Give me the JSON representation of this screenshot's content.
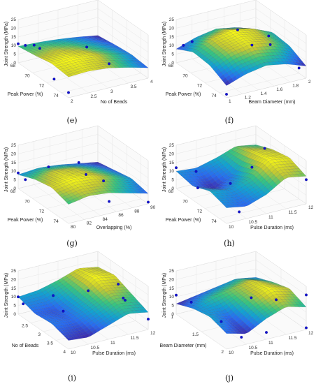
{
  "figure": {
    "panels": [
      {
        "panel_label": "(e)",
        "chart_data": {
          "type": "surface3d",
          "zlabel": "Joint Strength (MPa)",
          "xlabel": "Peak Power (%)",
          "ylabel": "No of Beads",
          "xlim": [
            68,
            75
          ],
          "ylim": [
            2,
            4
          ],
          "zlim": [
            0,
            25
          ],
          "xticks": [
            "68",
            "70",
            "72",
            "74"
          ],
          "yticks": [
            "2",
            "2.5",
            "3",
            "3.5",
            "4"
          ],
          "zticks": [
            "0",
            "5",
            "10",
            "15",
            "20",
            "25"
          ],
          "grid": true,
          "colormap": "parula",
          "surface_grid": [
            [
              9.5,
              9,
              8,
              6.5,
              4.5
            ],
            [
              11,
              11.5,
              10.5,
              8.5,
              6
            ],
            [
              13,
              13.5,
              12.5,
              10,
              7
            ],
            [
              12,
              12.5,
              11.5,
              9,
              6
            ]
          ],
          "points": [
            {
              "x": 68,
              "y": 2,
              "z": 11
            },
            {
              "x": 68,
              "y": 2.4,
              "z": 8
            },
            {
              "x": 69,
              "y": 2,
              "z": 13
            },
            {
              "x": 71,
              "y": 2,
              "z": 17
            },
            {
              "x": 73,
              "y": 2,
              "z": 5
            },
            {
              "x": 75,
              "y": 2,
              "z": 3
            },
            {
              "x": 72,
              "y": 3,
              "z": 15
            },
            {
              "x": 74,
              "y": 3.2,
              "z": 10
            }
          ]
        }
      },
      {
        "panel_label": "(f)",
        "chart_data": {
          "type": "surface3d",
          "zlabel": "Joint Strength (MPa)",
          "xlabel": "Peak Power (%)",
          "ylabel": "Beam Diameter (mm)",
          "xlim": [
            68,
            75
          ],
          "ylim": [
            1,
            2
          ],
          "zlim": [
            0,
            25
          ],
          "xticks": [
            "68",
            "70",
            "72",
            "74"
          ],
          "yticks": [
            "1",
            "1.2",
            "1.4",
            "1.6",
            "1.8",
            "2"
          ],
          "zticks": [
            "0",
            "5",
            "10",
            "15",
            "20",
            "25"
          ],
          "grid": true,
          "colormap": "parula",
          "surface_grid": [
            [
              8,
              12,
              14,
              12,
              8
            ],
            [
              13,
              18,
              20,
              18,
              13
            ],
            [
              12,
              17,
              19,
              17,
              12
            ],
            [
              7,
              11,
              13,
              11,
              7
            ]
          ],
          "points": [
            {
              "x": 68,
              "y": 1.2,
              "z": 10
            },
            {
              "x": 69,
              "y": 1.0,
              "z": 13
            },
            {
              "x": 71,
              "y": 1.5,
              "z": 22
            },
            {
              "x": 73,
              "y": 1.5,
              "z": 19
            },
            {
              "x": 72,
              "y": 1.8,
              "z": 18
            },
            {
              "x": 74,
              "y": 2.0,
              "z": 3
            },
            {
              "x": 75,
              "y": 1.0,
              "z": 2
            },
            {
              "x": 70,
              "y": 2.0,
              "z": 5
            }
          ]
        }
      },
      {
        "panel_label": "(g)",
        "chart_data": {
          "type": "surface3d",
          "zlabel": "Joint Strength (MPa)",
          "xlabel": "Peak Power (%)",
          "ylabel": "Overlapping (%)",
          "xlim": [
            68,
            75
          ],
          "ylim": [
            80,
            90
          ],
          "zlim": [
            0,
            25
          ],
          "xticks": [
            "68",
            "70",
            "72",
            "74"
          ],
          "yticks": [
            "80",
            "82",
            "84",
            "86",
            "88",
            "90"
          ],
          "zticks": [
            "0",
            "5",
            "10",
            "15",
            "20",
            "25"
          ],
          "grid": true,
          "colormap": "parula",
          "surface_grid": [
            [
              8,
              9,
              8,
              6,
              4
            ],
            [
              12,
              14,
              13,
              10,
              6
            ],
            [
              14,
              16,
              15,
              12,
              8
            ],
            [
              11,
              13,
              12,
              9,
              6
            ]
          ],
          "points": [
            {
              "x": 68,
              "y": 80,
              "z": 9
            },
            {
              "x": 69,
              "y": 80,
              "z": 8
            },
            {
              "x": 70,
              "y": 82,
              "z": 16
            },
            {
              "x": 72,
              "y": 84,
              "z": 22
            },
            {
              "x": 73,
              "y": 84,
              "z": 18
            },
            {
              "x": 74,
              "y": 86,
              "z": 3
            },
            {
              "x": 75,
              "y": 90,
              "z": 1
            },
            {
              "x": 71,
              "y": 88,
              "z": 4
            }
          ]
        }
      },
      {
        "panel_label": "(h)",
        "chart_data": {
          "type": "surface3d",
          "zlabel": "Joint Strength (MPa)",
          "xlabel": "Peak Power (%)",
          "ylabel": "Pulse Duration (ms)",
          "xlim": [
            68,
            75
          ],
          "ylim": [
            10,
            12
          ],
          "zlim": [
            0,
            25
          ],
          "xticks": [
            "68",
            "70",
            "72",
            "74"
          ],
          "yticks": [
            "10",
            "10.5",
            "11",
            "11.5",
            "12"
          ],
          "zticks": [
            "0",
            "5",
            "10",
            "15",
            "20",
            "25"
          ],
          "grid": true,
          "colormap": "parula",
          "surface_grid": [
            [
              10,
              9,
              12,
              16,
              14
            ],
            [
              8,
              4,
              9,
              20,
              18
            ],
            [
              12,
              10,
              14,
              22,
              20
            ],
            [
              9,
              7,
              11,
              18,
              16
            ]
          ],
          "points": [
            {
              "x": 68,
              "y": 10,
              "z": 12
            },
            {
              "x": 68,
              "y": 10.5,
              "z": 7
            },
            {
              "x": 71,
              "y": 10,
              "z": 9
            },
            {
              "x": 73,
              "y": 11,
              "z": 21
            },
            {
              "x": 72,
              "y": 11.5,
              "z": 27
            },
            {
              "x": 74,
              "y": 10.5,
              "z": 1
            },
            {
              "x": 75,
              "y": 12,
              "z": 14
            },
            {
              "x": 70,
              "y": 11,
              "z": 3
            }
          ]
        }
      },
      {
        "panel_label": "(i)",
        "chart_data": {
          "type": "surface3d",
          "zlabel": "Joint Strength (MPa)",
          "xlabel": "No of Beads",
          "ylabel": "Pulse Duration (ms)",
          "xlim": [
            2,
            4
          ],
          "ylim": [
            10,
            12
          ],
          "zlim": [
            0,
            25
          ],
          "xticks": [
            "2.5",
            "3",
            "3.5",
            "4"
          ],
          "yticks": [
            "10",
            "10.5",
            "11",
            "11.5",
            "12"
          ],
          "zticks": [
            "0",
            "5",
            "10",
            "15",
            "20",
            "25"
          ],
          "grid": true,
          "colormap": "parula",
          "surface_grid": [
            [
              10,
              11,
              14,
              18,
              16
            ],
            [
              7,
              6,
              12,
              20,
              18
            ],
            [
              8,
              7,
              11,
              16,
              14
            ],
            [
              5,
              4,
              8,
              12,
              10
            ]
          ],
          "points": [
            {
              "x": 2,
              "y": 10,
              "z": 10
            },
            {
              "x": 2.2,
              "y": 10,
              "z": 8
            },
            {
              "x": 2.6,
              "y": 10.5,
              "z": 14
            },
            {
              "x": 3.2,
              "y": 11,
              "z": 20
            },
            {
              "x": 3.6,
              "y": 11.5,
              "z": 25
            },
            {
              "x": 3.8,
              "y": 11.5,
              "z": 19
            },
            {
              "x": 4,
              "y": 12,
              "z": 6
            },
            {
              "x": 3.4,
              "y": 11.8,
              "z": 12
            },
            {
              "x": 3,
              "y": 10.5,
              "z": 9
            }
          ]
        }
      },
      {
        "panel_label": "(j)",
        "chart_data": {
          "type": "surface3d",
          "zlabel": "Joint Strength (MPa)",
          "xlabel": "Beam Diameter (mm)",
          "ylabel": "Pulse Duration (ms)",
          "xlim": [
            1,
            2
          ],
          "ylim": [
            10,
            12
          ],
          "zlim": [
            0,
            25
          ],
          "xticks": [
            "1",
            "1.5",
            "2"
          ],
          "yticks": [
            "10",
            "10.5",
            "11",
            "11.5",
            "12"
          ],
          "zticks": [
            "0",
            "5",
            "10",
            "15",
            "20",
            "25"
          ],
          "grid": true,
          "colormap": "parula",
          "surface_grid": [
            [
              6,
              8,
              10,
              12,
              10
            ],
            [
              10,
              14,
              16,
              18,
              14
            ],
            [
              12,
              8,
              15,
              20,
              17
            ],
            [
              9,
              6,
              12,
              16,
              13
            ]
          ],
          "points": [
            {
              "x": 1,
              "y": 10,
              "z": 11
            },
            {
              "x": 1.3,
              "y": 10,
              "z": 13
            },
            {
              "x": 1.5,
              "y": 10.5,
              "z": 3
            },
            {
              "x": 1.7,
              "y": 11,
              "z": 18
            },
            {
              "x": 1.8,
              "y": 11.5,
              "z": 16
            },
            {
              "x": 2,
              "y": 12,
              "z": 20
            },
            {
              "x": 2,
              "y": 11,
              "z": 4
            },
            {
              "x": 1.9,
              "y": 10.5,
              "z": 2
            },
            {
              "x": 2,
              "y": 12,
              "z": 1
            }
          ]
        }
      }
    ]
  }
}
